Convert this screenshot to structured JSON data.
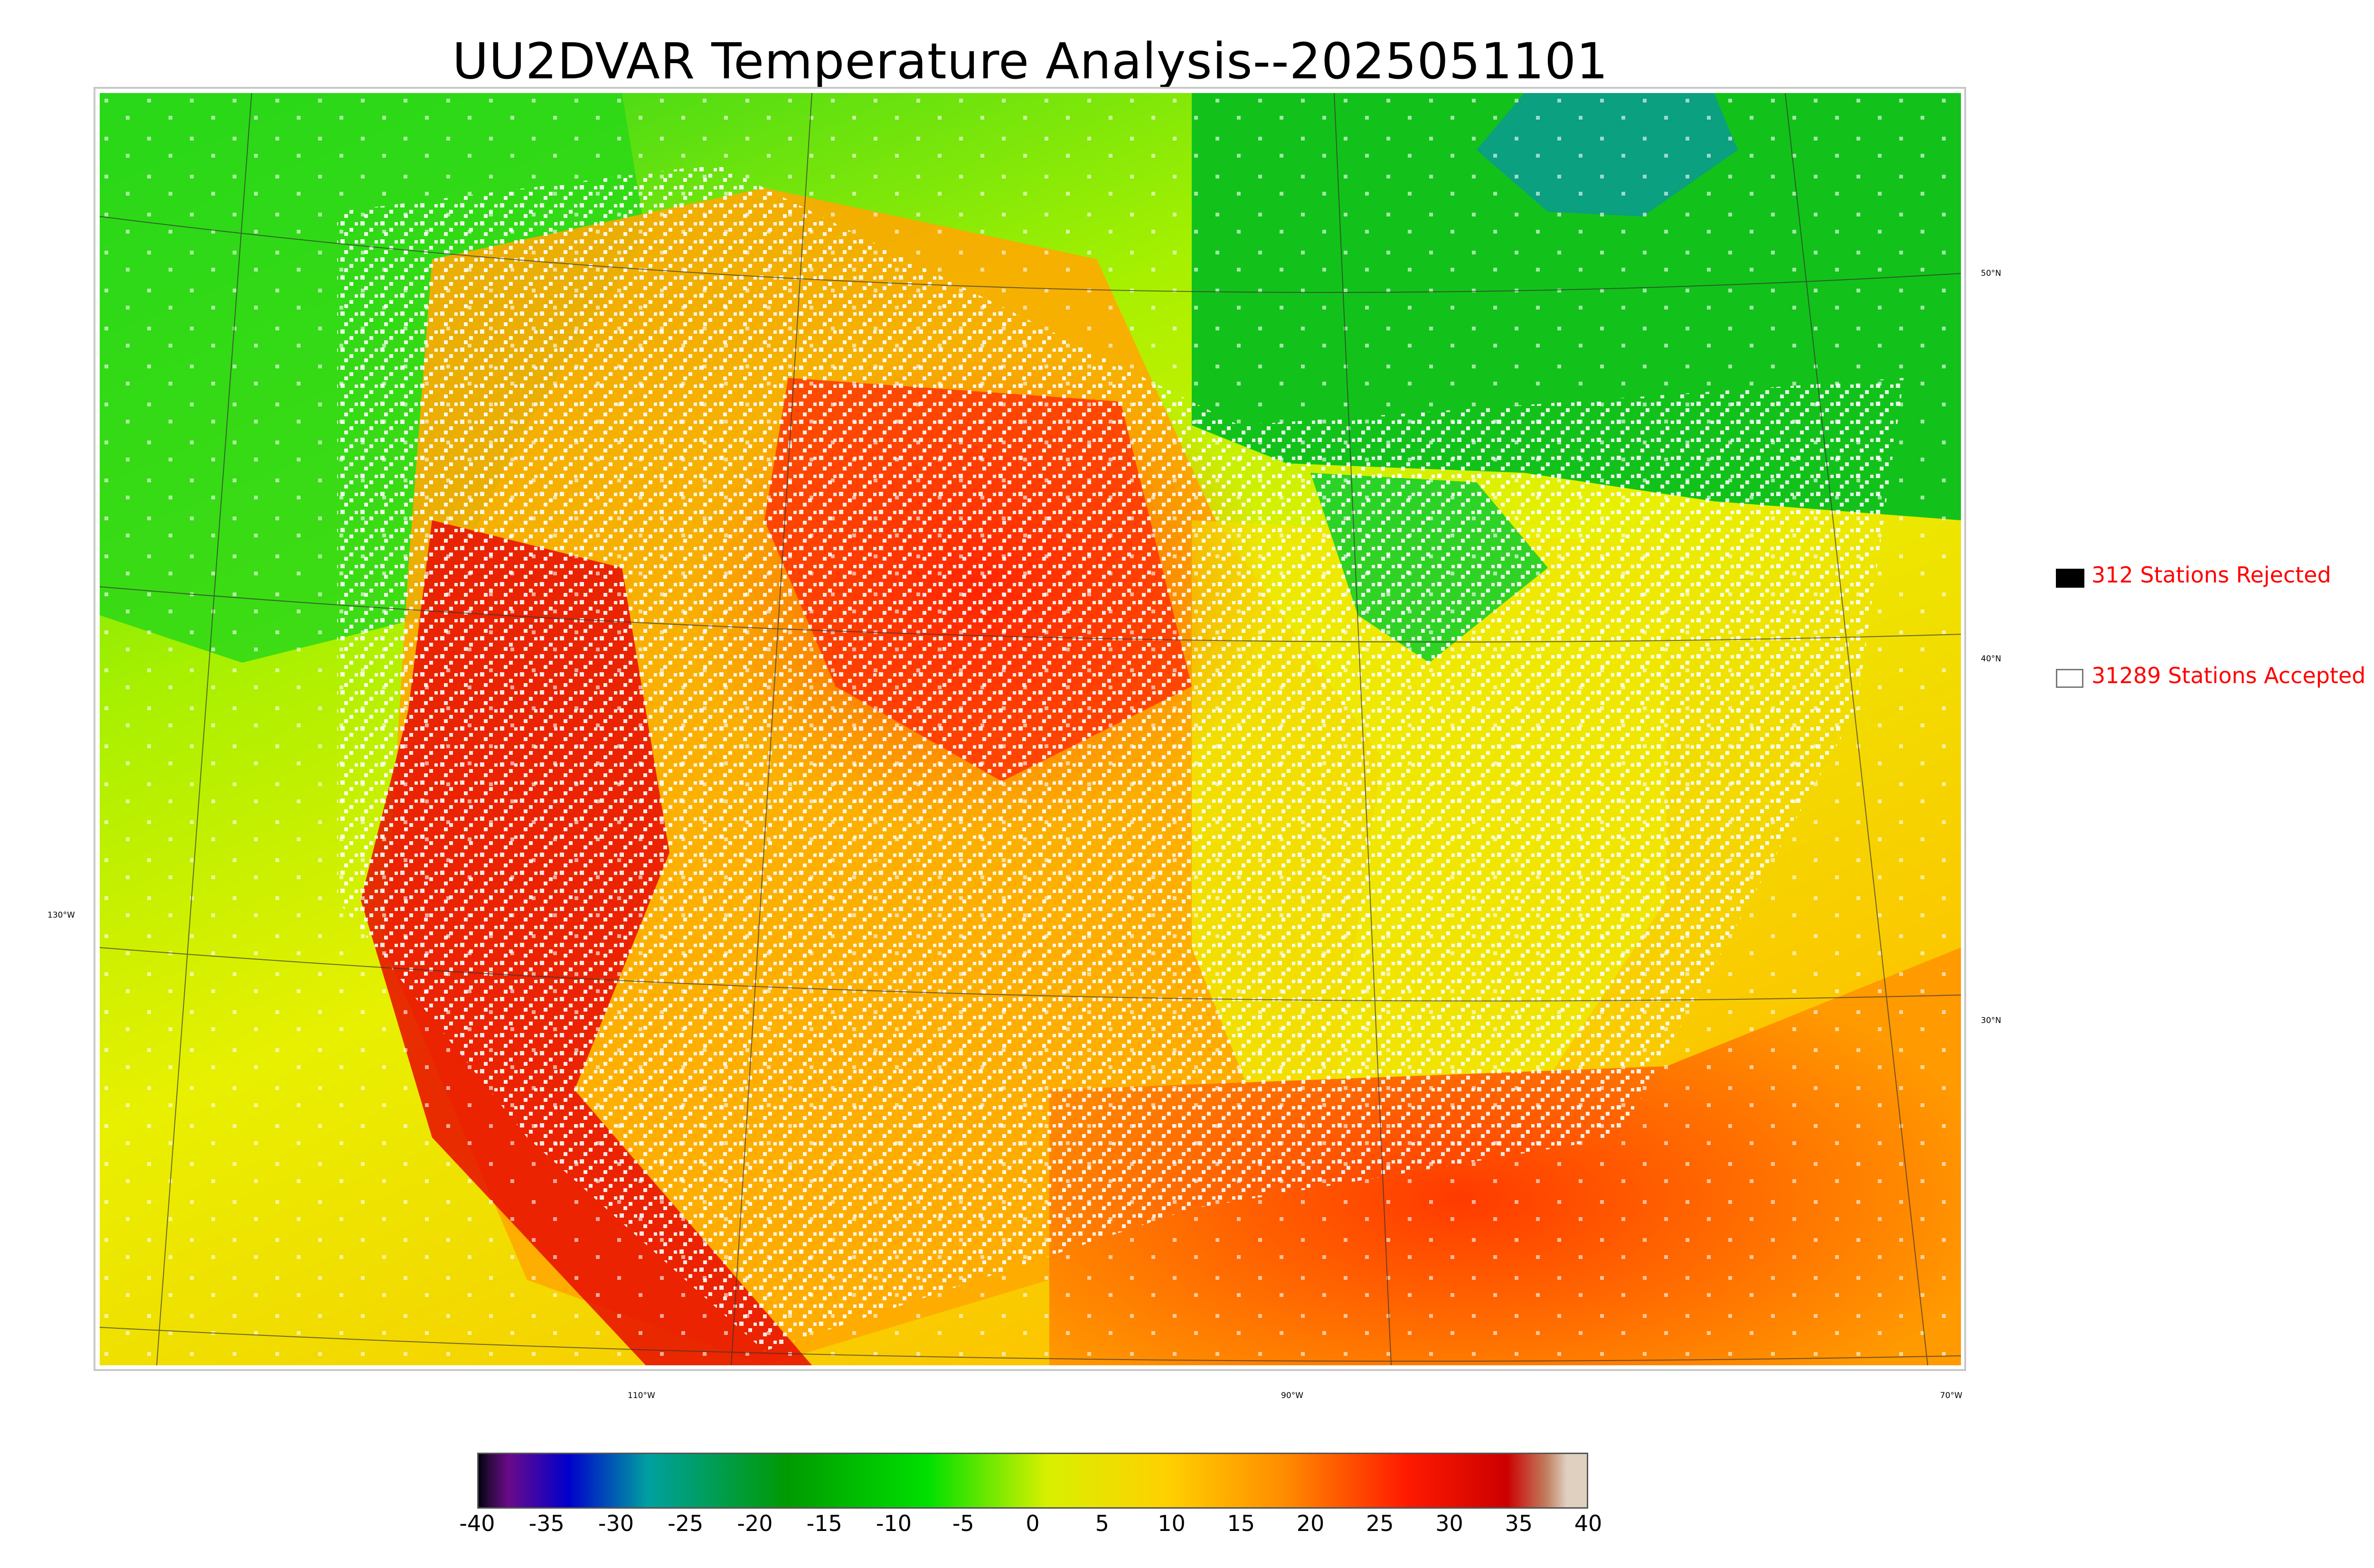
{
  "title": "UU2DVAR Temperature Analysis--2025051101",
  "legend": {
    "rejected_label": "312 Stations Rejected",
    "accepted_label": "31289 Stations Accepted",
    "rejected_color": "#000000",
    "accepted_color": "#ffffff"
  },
  "graticule_labels": {
    "lat": [
      "50°N",
      "40°N",
      "30°N"
    ],
    "lon": [
      "130°W",
      "110°W",
      "90°W",
      "70°W"
    ]
  },
  "colorbar": {
    "ticks": [
      "-40",
      "-35",
      "-30",
      "-25",
      "-20",
      "-15",
      "-10",
      "-5",
      "0",
      "5",
      "10",
      "15",
      "20",
      "25",
      "30",
      "35",
      "40"
    ],
    "range": [
      -40,
      40
    ],
    "colors": [
      "#000010",
      "#2a0a3a",
      "#6a0a8a",
      "#0000cc",
      "#00a0a0",
      "#009a00",
      "#00e000",
      "#d8f000",
      "#ffd000",
      "#ff8a00",
      "#ff1a00",
      "#cc0000",
      "#c08060",
      "#e0d0c0"
    ]
  }
}
